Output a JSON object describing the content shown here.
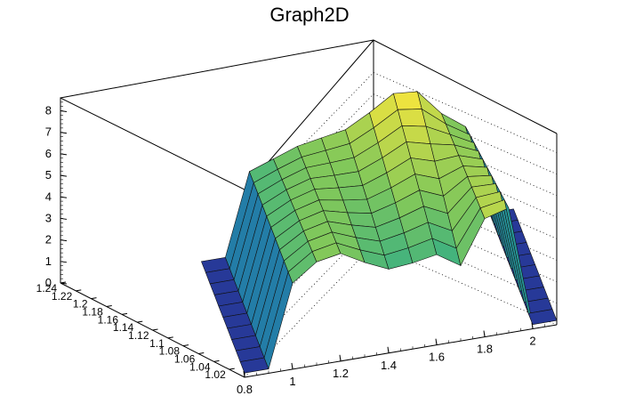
{
  "chart_data": {
    "type": "surface",
    "title": "Graph2D",
    "xlim": [
      0.8,
      2.1
    ],
    "ylim": [
      1.0,
      1.24
    ],
    "zlim": [
      0,
      8.6
    ],
    "x_ticks": [
      "0.8",
      "1",
      "1.2",
      "1.4",
      "1.6",
      "1.8",
      "2"
    ],
    "y_ticks": [
      "1.02",
      "1.04",
      "1.06",
      "1.08",
      "1.1",
      "1.12",
      "1.14",
      "1.16",
      "1.18",
      "1.2",
      "1.22",
      "1.24"
    ],
    "z_ticks": [
      "0",
      "1",
      "2",
      "3",
      "4",
      "5",
      "6",
      "7",
      "8"
    ],
    "colormap": "viridis-like (blue to yellow)",
    "surface_front_x": [
      0.8,
      0.9,
      1.0,
      1.1,
      1.2,
      1.3,
      1.4,
      1.5,
      1.6,
      1.7,
      1.8,
      1.9,
      2.0,
      2.1
    ],
    "surface_front_z": [
      0.2,
      0.2,
      4.0,
      4.8,
      5.0,
      4.4,
      3.9,
      4.0,
      4.2,
      3.5,
      5.5,
      5.8,
      0.2,
      0.2
    ],
    "surface_back_x": [
      0.8,
      0.9,
      1.0,
      1.1,
      1.2,
      1.3,
      1.4,
      1.5,
      1.6,
      1.7,
      1.8,
      1.9,
      2.0,
      2.1
    ],
    "surface_back_z": [
      0.2,
      0.2,
      4.0,
      4.4,
      4.8,
      5.0,
      5.2,
      5.8,
      6.5,
      6.4,
      5.2,
      4.4,
      0.2,
      0.2
    ],
    "grid": true
  }
}
